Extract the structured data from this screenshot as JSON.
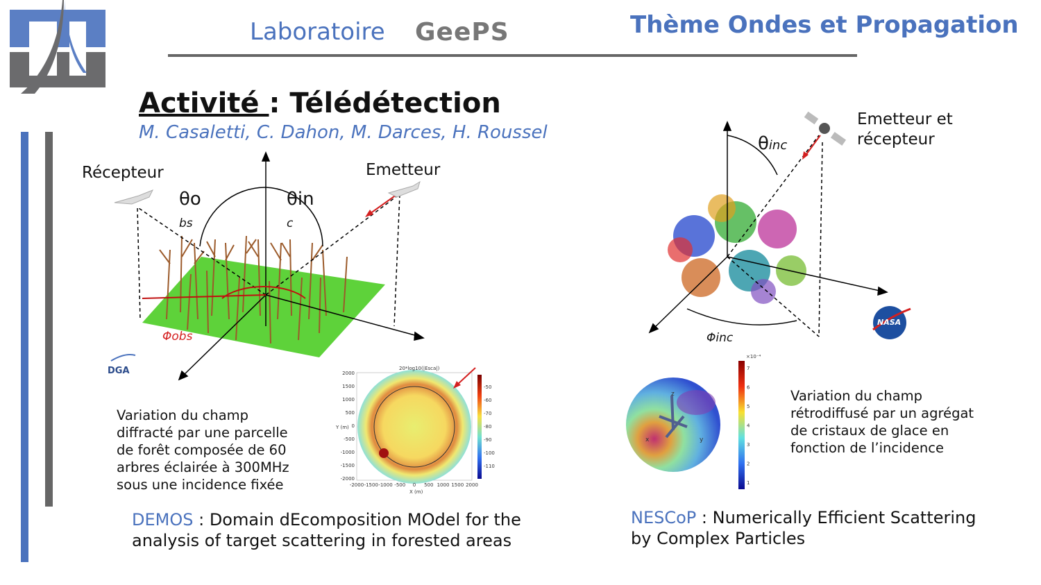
{
  "header": {
    "lab_label": "Laboratoire",
    "lab_logo_text": "GeePS",
    "theme_title": "Thème Ondes et Propagation"
  },
  "activity": {
    "label": "Activité ",
    "separator": ": Télédétection",
    "authors": "M. Casaletti, C. Dahon, M. Darces, H. Roussel"
  },
  "left_diagram": {
    "receiver": "Récepteur",
    "emitter": "Emetteur",
    "theta_obs": "θo",
    "theta_obs_sub": "bs",
    "theta_inc": "θin",
    "theta_inc_sub": "c",
    "phi_obs": "Φobs",
    "dga_logo": "DGA",
    "description": "Variation du champ diffracté par une parcelle de forêt composée de 60 arbres éclairée à 300MHz sous une incidence fixée",
    "heatmap": {
      "title": "20*log10(|Esca|)",
      "xlabel": "X (m)",
      "ylabel": "Y (m)",
      "xticks": [
        "-2000",
        "-1500",
        "-1000",
        "-500",
        "0",
        "500",
        "1000",
        "1500",
        "2000"
      ],
      "yticks": [
        "2000",
        "1500",
        "1000",
        "500",
        "0",
        "-500",
        "-1000",
        "-1500",
        "-2000"
      ],
      "colorbar_ticks": [
        "-50",
        "-60",
        "-70",
        "-80",
        "-90",
        "-100",
        "-110"
      ]
    },
    "caption_acronym": "DEMOS",
    "caption_text": " : Domain dEcomposition MOdel for the analysis of target scattering in forested areas"
  },
  "right_diagram": {
    "emitter_receiver": "Emetteur et récepteur",
    "theta_inc": "θ",
    "theta_inc_sub": "inc",
    "phi_inc": "Φinc",
    "nasa_logo": "NASA",
    "sphere_axes": [
      "x",
      "y",
      "z"
    ],
    "colorbar_exponent": "×10⁻⁴",
    "colorbar_ticks": [
      "7",
      "6",
      "5",
      "4",
      "3",
      "2",
      "1"
    ],
    "description": "Variation du champ rétrodiffusé par un agrégat de cristaux de glace en fonction de l’incidence",
    "caption_acronym": "NESCoP",
    "caption_text": " : Numerically Efficient Scattering by Complex Particles"
  },
  "colors": {
    "accent_blue": "#4a72bd",
    "gray": "#666666",
    "red": "#d42020"
  }
}
